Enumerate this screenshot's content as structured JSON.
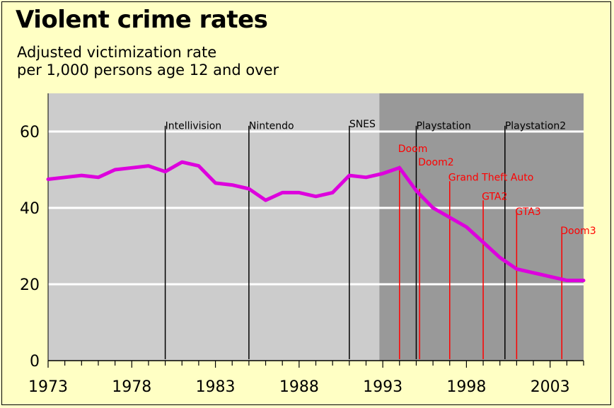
{
  "title": "Violent crime rates",
  "subtitle_lines": [
    "Adjusted victimization rate",
    "per 1,000 persons age 12 and over"
  ],
  "colors": {
    "plot_light": "#cccccc",
    "plot_dark": "#999999",
    "series_line": "#dd00dd",
    "console_lines": "#000000",
    "game_lines": "#ff0000",
    "grid": "#ffffff"
  },
  "chart_data": {
    "type": "line",
    "title": "Violent crime rates",
    "subtitle": "Adjusted victimization rate per 1,000 persons age 12 and over",
    "xlabel": "",
    "ylabel": "",
    "xlim": [
      1973,
      2005
    ],
    "ylim": [
      0,
      70
    ],
    "x_ticks": [
      1973,
      1978,
      1983,
      1988,
      1993,
      1998,
      2003
    ],
    "y_ticks": [
      0,
      20,
      40,
      60
    ],
    "grid": "horizontal",
    "shaded_region": {
      "from": 1992.8,
      "to": 2005
    },
    "series": [
      {
        "name": "",
        "x": [
          1973,
          1974,
          1975,
          1976,
          1977,
          1978,
          1979,
          1980,
          1981,
          1982,
          1983,
          1984,
          1985,
          1986,
          1987,
          1988,
          1989,
          1990,
          1991,
          1992,
          1993,
          1994,
          1995,
          1996,
          1997,
          1998,
          1999,
          2000,
          2001,
          2002,
          2003,
          2004,
          2005
        ],
        "y": [
          47.5,
          48,
          48.5,
          48,
          50,
          50.5,
          51,
          49.5,
          52,
          51,
          46.5,
          46,
          45,
          42,
          44,
          44,
          43,
          44,
          48.5,
          48,
          49,
          50.5,
          44.5,
          40,
          37.5,
          35,
          31,
          27,
          24,
          23,
          22,
          21,
          21
        ]
      }
    ],
    "annotations": [
      {
        "label": "Intellivision",
        "x": 1980,
        "kind": "console",
        "label_y": 61
      },
      {
        "label": "Nintendo",
        "x": 1985,
        "kind": "console",
        "label_y": 61
      },
      {
        "label": "SNES",
        "x": 1991,
        "kind": "console",
        "label_y": 61.5
      },
      {
        "label": "Playstation",
        "x": 1995,
        "kind": "console",
        "label_y": 61
      },
      {
        "label": "Playstation2",
        "x": 2000.3,
        "kind": "console",
        "label_y": 61
      },
      {
        "label": "Doom",
        "x": 1994,
        "kind": "game",
        "label_y": 55,
        "top_y": 51
      },
      {
        "label": "Doom2",
        "x": 1995.2,
        "kind": "game",
        "label_y": 51.5,
        "top_y": 45
      },
      {
        "label": "Grand Theft Auto",
        "x": 1997,
        "kind": "game",
        "label_y": 47.5,
        "top_y": 47
      },
      {
        "label": "GTA2",
        "x": 1999,
        "kind": "game",
        "label_y": 42.5,
        "top_y": 42
      },
      {
        "label": "GTA3",
        "x": 2001,
        "kind": "game",
        "label_y": 38.5,
        "top_y": 39
      },
      {
        "label": "Doom3",
        "x": 2003.7,
        "kind": "game",
        "label_y": 33.5,
        "top_y": 35
      }
    ]
  }
}
